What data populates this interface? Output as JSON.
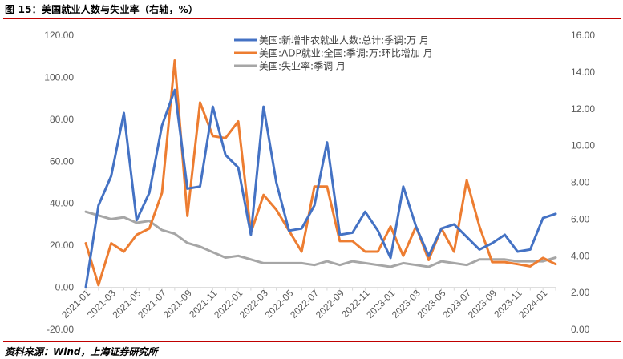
{
  "figure_title": "图 15：美国就业人数与失业率（右轴，%）",
  "source": "资料来源：Wind，上海证券研究所",
  "chart_data": {
    "type": "line",
    "title": "",
    "xlabel": "",
    "ylabel": "",
    "y_ticks": [
      "120.00",
      "100.00",
      "80.00",
      "60.00",
      "40.00",
      "20.00",
      "0.00",
      "-20.00"
    ],
    "y2_ticks": [
      "16.00",
      "14.00",
      "12.00",
      "10.00",
      "8.00",
      "6.00",
      "4.00",
      "2.00",
      "0.00"
    ],
    "ylim": [
      -20,
      120
    ],
    "y2lim": [
      0,
      16
    ],
    "x_tick_labels": [
      "2021-01",
      "2021-03",
      "2021-05",
      "2021-07",
      "2021-09",
      "2021-11",
      "2022-01",
      "2022-03",
      "2022-05",
      "2022-07",
      "2022-09",
      "2022-11",
      "2023-01",
      "2023-03",
      "2023-05",
      "2023-07",
      "2023-09",
      "2023-11",
      "2024-01"
    ],
    "categories": [
      "2021-01",
      "2021-02",
      "2021-03",
      "2021-04",
      "2021-05",
      "2021-06",
      "2021-07",
      "2021-08",
      "2021-09",
      "2021-10",
      "2021-11",
      "2021-12",
      "2022-01",
      "2022-02",
      "2022-03",
      "2022-04",
      "2022-05",
      "2022-06",
      "2022-07",
      "2022-08",
      "2022-09",
      "2022-10",
      "2022-11",
      "2022-12",
      "2023-01",
      "2023-02",
      "2023-03",
      "2023-04",
      "2023-05",
      "2023-06",
      "2023-07",
      "2023-08",
      "2023-09",
      "2023-10",
      "2023-11",
      "2023-12",
      "2024-01",
      "2024-02"
    ],
    "grid": false,
    "legend_position": "top-center",
    "series": [
      {
        "name": "美国:新增非农就业人数:总计:季调:万 月",
        "axis": "left",
        "color": "#4472c4",
        "values": [
          0,
          39,
          53,
          83,
          32,
          45,
          77,
          94,
          47,
          48,
          86,
          63,
          57,
          25,
          86,
          50,
          27,
          28,
          39,
          69,
          25,
          26,
          36,
          27,
          14,
          48,
          29,
          15,
          28,
          30,
          24,
          18,
          21,
          25,
          17,
          18,
          33,
          35
        ]
      },
      {
        "name": "美国:ADP就业:全国:季调:万:环比增加 月",
        "axis": "left",
        "color": "#ed7d31",
        "values": [
          21,
          1,
          21,
          17,
          25,
          28,
          45,
          108,
          34,
          88,
          72,
          71,
          79,
          26,
          44,
          37,
          27,
          17,
          48,
          48,
          22,
          22,
          17,
          17,
          29,
          15,
          29,
          13,
          28,
          17,
          51,
          29,
          12,
          12,
          11,
          10,
          14,
          11
        ]
      },
      {
        "name": "美国:失业率:季调 月",
        "axis": "right",
        "color": "#a6a6a6",
        "values": [
          6.4,
          6.2,
          6.0,
          6.1,
          5.8,
          5.9,
          5.4,
          5.2,
          4.7,
          4.5,
          4.2,
          3.9,
          4.0,
          3.8,
          3.6,
          3.6,
          3.6,
          3.6,
          3.5,
          3.7,
          3.5,
          3.7,
          3.6,
          3.5,
          3.4,
          3.6,
          3.5,
          3.4,
          3.7,
          3.6,
          3.5,
          3.8,
          3.8,
          3.8,
          3.7,
          3.7,
          3.7,
          3.9
        ]
      }
    ]
  }
}
